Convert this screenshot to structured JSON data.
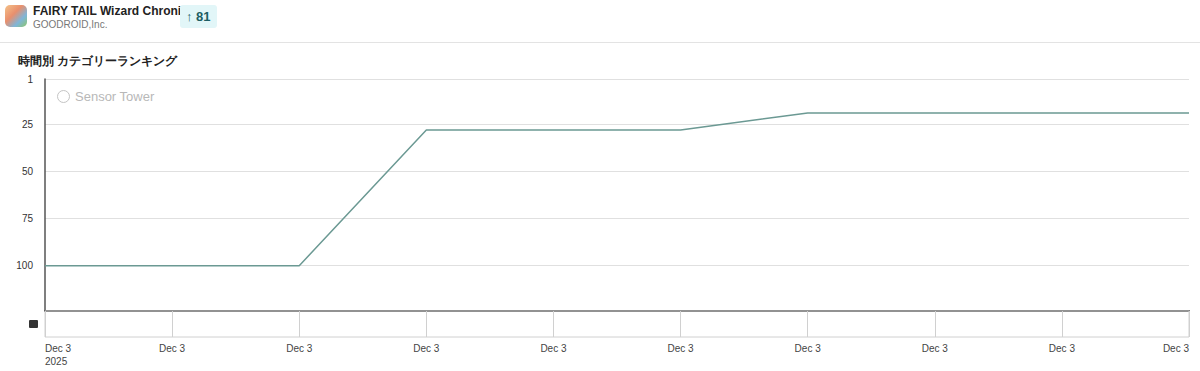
{
  "header": {
    "app_title": "FAIRY TAIL Wizard Chronicle",
    "developer": "GOODROID,Inc.",
    "badge": "↑ 81"
  },
  "chart_data": {
    "type": "line",
    "title": "時間別 カテゴリーランキング",
    "watermark": "Sensor Tower",
    "x": [
      "Dec 3",
      "Dec 3",
      "Dec 3",
      "Dec 3",
      "Dec 3",
      "Dec 3",
      "Dec 3",
      "Dec 3",
      "Dec 3",
      "Dec 3"
    ],
    "x_year": "2025",
    "values": [
      100,
      100,
      100,
      28,
      28,
      28,
      19,
      19,
      19,
      19
    ],
    "color": "#6b9993",
    "ylim": [
      1,
      124
    ],
    "yticks": [
      1,
      25,
      50,
      75,
      100
    ],
    "grid": true
  }
}
